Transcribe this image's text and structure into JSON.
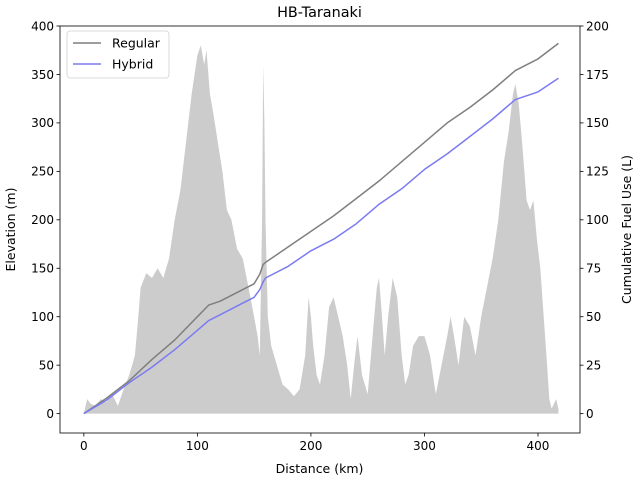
{
  "chart_data": {
    "type": "line",
    "title": "HB-Taranaki",
    "xlabel": "Distance (km)",
    "ylabel_left": "Elevation (m)",
    "ylabel_right": "Cumulative Fuel Use (L)",
    "xlim": [
      -21,
      437
    ],
    "ylim_left": [
      -20,
      400
    ],
    "ylim_right": [
      -10,
      200
    ],
    "x_ticks": [
      0,
      100,
      200,
      300,
      400
    ],
    "y_left_ticks": [
      0,
      50,
      100,
      150,
      200,
      250,
      300,
      350,
      400
    ],
    "y_right_ticks": [
      0,
      25,
      50,
      75,
      100,
      125,
      150,
      175,
      200
    ],
    "grid": false,
    "legend_position": "upper-left",
    "series": [
      {
        "name": "Regular",
        "axis": "right",
        "color": "#7f7f7f",
        "x": [
          0,
          20,
          40,
          60,
          80,
          100,
          110,
          120,
          140,
          150,
          155,
          158,
          160,
          180,
          200,
          220,
          240,
          260,
          280,
          300,
          320,
          340,
          360,
          380,
          400,
          418
        ],
        "y": [
          0,
          8,
          17,
          28,
          38,
          50,
          56,
          58,
          64,
          67,
          72,
          77,
          78,
          86,
          94,
          102,
          111,
          120,
          130,
          140,
          150,
          158,
          167,
          177,
          183,
          191
        ]
      },
      {
        "name": "Hybrid",
        "axis": "right",
        "color": "#7b7bf2",
        "x": [
          0,
          20,
          40,
          60,
          80,
          100,
          110,
          120,
          140,
          150,
          155,
          158,
          160,
          180,
          200,
          220,
          240,
          260,
          280,
          300,
          320,
          340,
          360,
          380,
          400,
          418
        ],
        "y": [
          0,
          7,
          16,
          24,
          33,
          43,
          48,
          51,
          57,
          60,
          64,
          68,
          70,
          76,
          84,
          90,
          98,
          108,
          116,
          126,
          134,
          143,
          152,
          162,
          166,
          173
        ]
      },
      {
        "name": "Elevation",
        "axis": "left",
        "type": "area",
        "color": "#cccccc",
        "x": [
          0,
          3,
          6,
          10,
          15,
          20,
          25,
          30,
          35,
          40,
          45,
          48,
          50,
          55,
          60,
          65,
          70,
          75,
          80,
          85,
          90,
          95,
          100,
          103,
          106,
          108,
          111,
          114,
          118,
          122,
          126,
          130,
          135,
          140,
          145,
          150,
          153,
          155,
          157,
          158,
          159,
          160,
          162,
          165,
          170,
          175,
          180,
          185,
          190,
          195,
          198,
          200,
          202,
          205,
          208,
          212,
          216,
          220,
          224,
          228,
          232,
          235,
          238,
          241,
          245,
          250,
          255,
          258,
          260,
          262,
          265,
          268,
          272,
          276,
          280,
          283,
          286,
          290,
          295,
          300,
          305,
          310,
          315,
          320,
          323,
          326,
          330,
          335,
          340,
          345,
          350,
          355,
          360,
          365,
          370,
          374,
          378,
          380,
          383,
          386,
          390,
          393,
          396,
          399,
          402,
          405,
          408,
          410,
          412,
          414,
          416,
          418
        ],
        "y": [
          0,
          15,
          10,
          8,
          15,
          12,
          20,
          8,
          25,
          40,
          60,
          100,
          130,
          145,
          140,
          150,
          140,
          160,
          200,
          230,
          280,
          330,
          370,
          380,
          360,
          375,
          330,
          310,
          280,
          250,
          210,
          200,
          170,
          160,
          130,
          100,
          80,
          60,
          200,
          360,
          300,
          200,
          100,
          70,
          50,
          30,
          25,
          18,
          25,
          60,
          120,
          100,
          70,
          40,
          30,
          60,
          110,
          120,
          100,
          80,
          50,
          15,
          50,
          80,
          40,
          20,
          90,
          130,
          140,
          110,
          60,
          100,
          140,
          120,
          60,
          30,
          40,
          70,
          80,
          80,
          60,
          20,
          50,
          80,
          100,
          80,
          50,
          100,
          90,
          60,
          100,
          130,
          160,
          200,
          260,
          290,
          330,
          340,
          320,
          280,
          220,
          210,
          220,
          180,
          150,
          100,
          50,
          15,
          5,
          10,
          15,
          5
        ]
      }
    ]
  }
}
